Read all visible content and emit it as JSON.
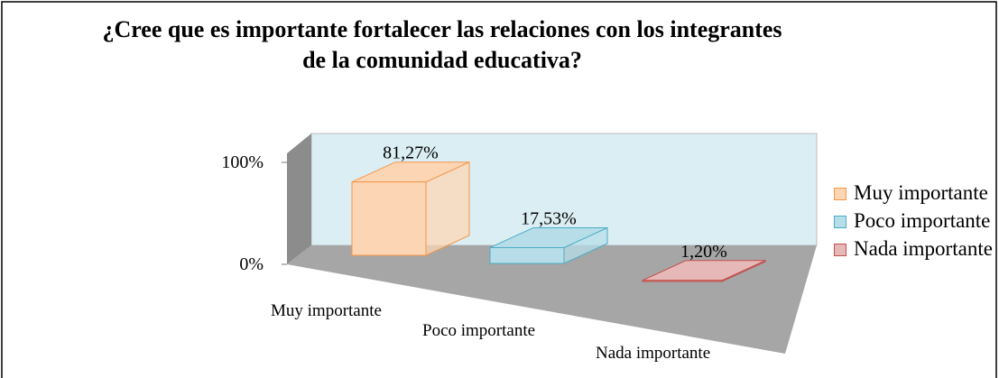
{
  "chart_data": {
    "type": "bar3d",
    "title": "¿Cree que es importante fortalecer las relaciones con los integrantes de la comunidad educativa?",
    "categories": [
      "Muy importante",
      "Poco importante",
      "Nada importante"
    ],
    "values": [
      81.27,
      17.53,
      1.2
    ],
    "value_labels": [
      "81,27%",
      "17,53%",
      "1,20%"
    ],
    "colors": [
      "#fcd5b5",
      "#b7dee8",
      "#e6b9b8"
    ],
    "edge_colors": [
      "#f79646",
      "#4bacc6",
      "#c0504d"
    ],
    "ylim": [
      0,
      100
    ],
    "yticks": [
      {
        "value": 0,
        "label": "0%"
      },
      {
        "value": 100,
        "label": "100%"
      }
    ],
    "legend": "right"
  }
}
